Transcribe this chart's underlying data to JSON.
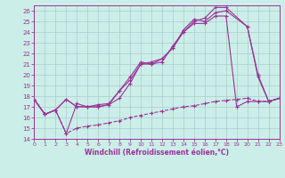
{
  "xlabel": "Windchill (Refroidissement éolien,°C)",
  "bg_color": "#cceee8",
  "grid_color": "#aadddd",
  "line_color": "#993399",
  "xlim": [
    0,
    23
  ],
  "ylim": [
    14,
    26.5
  ],
  "xticks": [
    0,
    1,
    2,
    3,
    4,
    5,
    6,
    7,
    8,
    9,
    10,
    11,
    12,
    13,
    14,
    15,
    16,
    17,
    18,
    19,
    20,
    21,
    22,
    23
  ],
  "yticks": [
    14,
    15,
    16,
    17,
    18,
    19,
    20,
    21,
    22,
    23,
    24,
    25,
    26
  ],
  "series": [
    {
      "x": [
        0,
        1,
        2,
        3,
        4,
        5,
        6,
        7,
        8,
        9,
        10,
        11,
        12,
        13,
        14,
        15,
        16,
        17,
        18,
        20,
        21,
        22,
        23
      ],
      "y": [
        17.7,
        16.3,
        16.7,
        17.7,
        17.0,
        17.0,
        17.2,
        17.3,
        18.5,
        19.5,
        21.0,
        21.0,
        21.5,
        22.5,
        24.0,
        25.0,
        25.3,
        26.3,
        26.3,
        24.5,
        19.8,
        17.5,
        17.8
      ]
    },
    {
      "x": [
        0,
        1,
        2,
        3,
        4,
        5,
        6,
        7,
        8,
        9,
        10,
        11,
        12,
        13,
        14,
        15,
        16,
        17,
        18,
        20,
        21,
        22,
        23
      ],
      "y": [
        17.7,
        16.3,
        16.7,
        17.7,
        17.0,
        17.0,
        17.0,
        17.2,
        17.8,
        19.2,
        21.0,
        21.2,
        21.5,
        22.5,
        24.2,
        25.2,
        25.0,
        25.8,
        26.0,
        24.5,
        20.0,
        17.5,
        17.8
      ]
    },
    {
      "x": [
        0,
        1,
        2,
        3,
        4,
        5,
        6,
        7,
        8,
        9,
        10,
        11,
        12,
        13,
        14,
        15,
        16,
        17,
        18,
        19,
        20,
        21,
        22,
        23
      ],
      "y": [
        17.7,
        16.3,
        16.7,
        14.5,
        17.3,
        17.0,
        17.0,
        17.2,
        18.5,
        19.8,
        21.2,
        21.0,
        21.2,
        22.7,
        24.0,
        24.8,
        24.8,
        25.5,
        25.5,
        17.0,
        17.5,
        17.5,
        17.5,
        17.8
      ]
    },
    {
      "x": [
        0,
        1,
        2,
        3,
        4,
        5,
        6,
        7,
        8,
        9,
        10,
        11,
        12,
        13,
        14,
        15,
        16,
        17,
        18,
        19,
        20,
        21,
        22,
        23
      ],
      "y": [
        17.7,
        16.3,
        16.7,
        14.5,
        15.0,
        15.2,
        15.3,
        15.5,
        15.7,
        16.0,
        16.2,
        16.4,
        16.6,
        16.8,
        17.0,
        17.1,
        17.3,
        17.5,
        17.6,
        17.7,
        17.8,
        17.5,
        17.5,
        17.8
      ]
    }
  ]
}
